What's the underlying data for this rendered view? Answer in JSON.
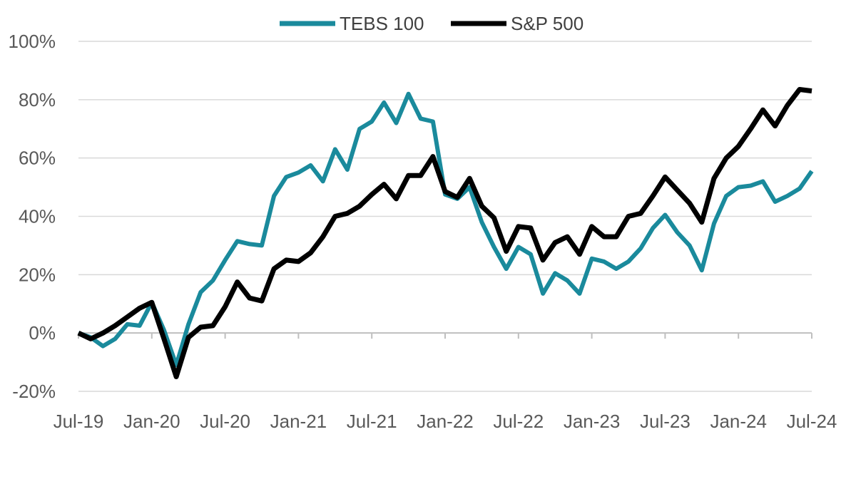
{
  "chart_data": {
    "type": "line",
    "title": "",
    "xlabel": "",
    "ylabel": "",
    "x_tick_labels": [
      "Jul-19",
      "Jan-20",
      "Jul-20",
      "Jan-21",
      "Jul-21",
      "Jan-22",
      "Jul-22",
      "Jan-23",
      "Jul-23",
      "Jan-24",
      "Jul-24"
    ],
    "y_tick_labels": [
      "-20%",
      "0%",
      "20%",
      "40%",
      "60%",
      "80%",
      "100%"
    ],
    "ylim": [
      -20,
      100
    ],
    "y_unit": "%",
    "x_start": "Jul-19",
    "x_end": "Jul-24",
    "grid": "horizontal",
    "legend_position": "top-center",
    "series": [
      {
        "name": "TEBS 100",
        "color": "#1A8A9C",
        "values": [
          0,
          -1.5,
          -4.5,
          -2,
          3,
          2.5,
          10.5,
          1,
          -11,
          3,
          14,
          18,
          25,
          31.5,
          30.5,
          30,
          47,
          53.5,
          55,
          57.5,
          52,
          63,
          56,
          70,
          72.5,
          79,
          72,
          82,
          73.5,
          72.5,
          47.5,
          46,
          50,
          38,
          29.5,
          22,
          29.5,
          27,
          13.5,
          20.5,
          18,
          13.5,
          25.5,
          24.5,
          22,
          24.5,
          29,
          36,
          40.5,
          34.5,
          30,
          21.5,
          37.5,
          47,
          50,
          50.5,
          52,
          45,
          47,
          49.5,
          55.5
        ]
      },
      {
        "name": "S&P 500",
        "color": "#000000",
        "values": [
          0,
          -2,
          0,
          2.5,
          5.5,
          8.5,
          10.5,
          -2,
          -15,
          -1.5,
          2,
          2.5,
          9,
          17.5,
          12,
          11,
          22,
          25,
          24.5,
          27.5,
          33,
          40,
          41,
          43.5,
          47.5,
          51,
          46,
          54,
          54,
          60.5,
          48.5,
          46.5,
          53,
          43.5,
          39.5,
          28,
          36.5,
          36,
          25,
          31,
          33,
          27,
          36.5,
          33,
          33,
          40,
          41,
          47,
          53.5,
          49,
          44.5,
          38,
          53,
          60,
          64,
          70,
          76.5,
          71,
          78,
          83.5,
          83
        ]
      }
    ]
  }
}
